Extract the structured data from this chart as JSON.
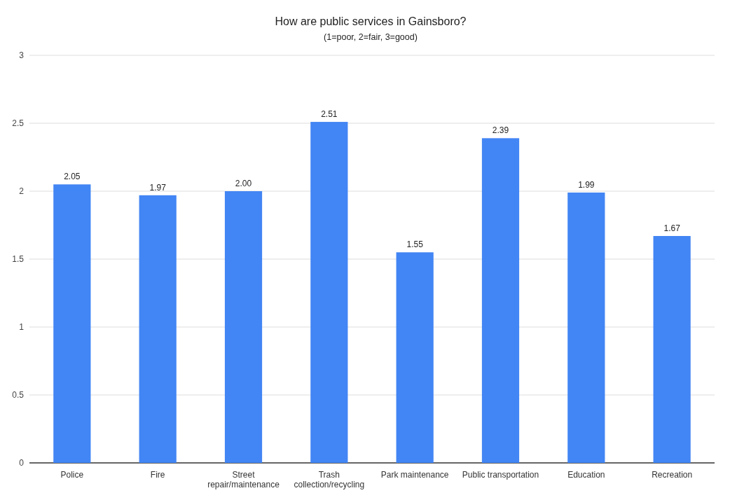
{
  "chart_data": {
    "type": "bar",
    "title": "How are public services in Gainsboro?",
    "subtitle": "(1=poor, 2=fair, 3=good)",
    "categories": [
      "Police",
      "Fire",
      "Street repair/maintenance",
      "Trash collection/recycling",
      "Park maintenance",
      "Public transportation",
      "Education",
      "Recreation"
    ],
    "values": [
      2.05,
      1.97,
      2.0,
      2.51,
      1.55,
      2.39,
      1.99,
      1.67
    ],
    "value_labels": [
      "2.05",
      "1.97",
      "2.00",
      "2.51",
      "1.55",
      "2.39",
      "1.99",
      "1.67"
    ],
    "color": "#4285f4",
    "ylim": [
      0,
      3
    ],
    "yticks": [
      0,
      0.5,
      1,
      1.5,
      2,
      2.5,
      3
    ],
    "grid": "y"
  }
}
